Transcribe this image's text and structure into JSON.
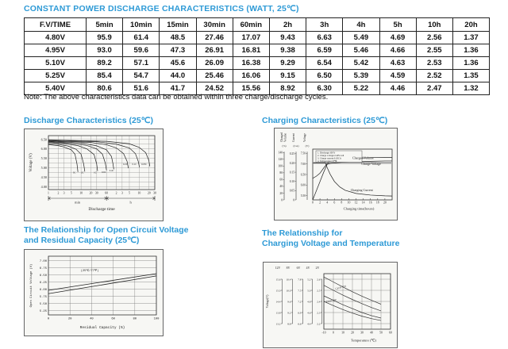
{
  "accent_color": "#2e9ad6",
  "main_title": "CONSTANT POWER DISCHARGE CHARACTERISTICS (WATT, 25℃)",
  "table": {
    "headers": [
      "F.V/TIME",
      "5min",
      "10min",
      "15min",
      "30min",
      "60min",
      "2h",
      "3h",
      "4h",
      "5h",
      "10h",
      "20h"
    ],
    "rows": [
      [
        "4.80V",
        "95.9",
        "61.4",
        "48.5",
        "27.46",
        "17.07",
        "9.43",
        "6.63",
        "5.49",
        "4.69",
        "2.56",
        "1.37"
      ],
      [
        "4.95V",
        "93.0",
        "59.6",
        "47.3",
        "26.91",
        "16.81",
        "9.38",
        "6.59",
        "5.46",
        "4.66",
        "2.55",
        "1.36"
      ],
      [
        "5.10V",
        "89.2",
        "57.1",
        "45.6",
        "26.09",
        "16.38",
        "9.29",
        "6.54",
        "5.42",
        "4.63",
        "2.53",
        "1.36"
      ],
      [
        "5.25V",
        "85.4",
        "54.7",
        "44.0",
        "25.46",
        "16.06",
        "9.15",
        "6.50",
        "5.39",
        "4.59",
        "2.52",
        "1.35"
      ],
      [
        "5.40V",
        "80.6",
        "51.6",
        "41.7",
        "24.52",
        "15.56",
        "8.92",
        "6.30",
        "5.22",
        "4.46",
        "2.47",
        "1.32"
      ]
    ]
  },
  "note": "Note: The above characteristics data can be obtained within three charge/discharge cycles.",
  "sections": {
    "discharge": {
      "title": "Discharge Characteristics (25℃)"
    },
    "charging": {
      "title": "Charging Characteristics (25℃)"
    },
    "ocv": {
      "title_line1": "The Relationship for Open Circuit Voltage",
      "title_line2": "and Residual Capacity (25℃)"
    },
    "temp": {
      "title_line1": "The Relationship for",
      "title_line2": "Charging Voltage and Temperature"
    }
  },
  "chart_data": [
    {
      "type": "line",
      "title": "Discharge Characteristics (25℃)",
      "xlabel": "Discharge time",
      "ylabel": "Voltage (V)",
      "x_scale": "log-minutes",
      "x_group_labels": [
        "min",
        "h"
      ],
      "x_ticks_min": {
        "labels": [
          "1",
          "2",
          "3",
          "5",
          "10",
          "20",
          "30",
          "60"
        ],
        "values": [
          1,
          2,
          3,
          5,
          10,
          20,
          30,
          60
        ]
      },
      "x_ticks_h": {
        "labels": [
          "2",
          "3",
          "5",
          "10",
          "20",
          "30"
        ],
        "values_min": [
          120,
          180,
          300,
          600,
          1200,
          1800
        ]
      },
      "y_ticks": {
        "labels": [
          "6.50",
          "6.00",
          "5.50",
          "5.00",
          "4.50",
          "4.00"
        ],
        "values": [
          6.5,
          6.0,
          5.5,
          5.0,
          4.5,
          4.0
        ]
      },
      "y_range": [
        3.85,
        6.7
      ],
      "series": [
        {
          "name": "3C",
          "points": [
            [
              1,
              6.22
            ],
            [
              2,
              6.17
            ],
            [
              3,
              6.1
            ],
            [
              5,
              5.95
            ],
            [
              6.5,
              5.72
            ],
            [
              7.5,
              5.2
            ],
            [
              8,
              4.78
            ]
          ],
          "label_at": [
            6.2,
            4.7
          ]
        },
        {
          "name": "2C",
          "points": [
            [
              1,
              6.28
            ],
            [
              2,
              6.24
            ],
            [
              4,
              6.15
            ],
            [
              7,
              5.98
            ],
            [
              10,
              5.72
            ],
            [
              12,
              5.2
            ],
            [
              13,
              4.8
            ]
          ],
          "label_at": [
            11,
            4.7
          ]
        },
        {
          "name": "1C",
          "points": [
            [
              1,
              6.35
            ],
            [
              3,
              6.28
            ],
            [
              8,
              6.17
            ],
            [
              15,
              6.0
            ],
            [
              25,
              5.7
            ],
            [
              30,
              5.2
            ],
            [
              32,
              4.83
            ]
          ],
          "label_at": [
            27,
            4.7
          ]
        },
        {
          "name": "0.6C",
          "points": [
            [
              1,
              6.38
            ],
            [
              5,
              6.3
            ],
            [
              15,
              6.18
            ],
            [
              30,
              6.0
            ],
            [
              45,
              5.72
            ],
            [
              55,
              5.25
            ],
            [
              60,
              4.87
            ]
          ],
          "label_at": [
            50,
            4.73
          ]
        },
        {
          "name": "0.4C",
          "points": [
            [
              1,
              6.41
            ],
            [
              10,
              6.31
            ],
            [
              30,
              6.16
            ],
            [
              60,
              5.95
            ],
            [
              85,
              5.6
            ],
            [
              95,
              5.2
            ],
            [
              100,
              4.92
            ]
          ],
          "label_at": [
            86,
            4.82
          ]
        },
        {
          "name": "0.2C",
          "points": [
            [
              1,
              6.43
            ],
            [
              20,
              6.34
            ],
            [
              60,
              6.22
            ],
            [
              120,
              6.05
            ],
            [
              200,
              5.75
            ],
            [
              255,
              5.35
            ],
            [
              280,
              4.98
            ]
          ],
          "label_at": [
            225,
            5.15
          ]
        },
        {
          "name": "0.1C",
          "points": [
            [
              1,
              6.45
            ],
            [
              30,
              6.38
            ],
            [
              120,
              6.25
            ],
            [
              300,
              6.05
            ],
            [
              460,
              5.75
            ],
            [
              560,
              5.35
            ],
            [
              610,
              5.03
            ]
          ],
          "label_at": [
            430,
            5.15
          ]
        },
        {
          "name": "0.05C",
          "points": [
            [
              1,
              6.47
            ],
            [
              60,
              6.4
            ],
            [
              300,
              6.27
            ],
            [
              600,
              6.08
            ],
            [
              950,
              5.8
            ],
            [
              1180,
              5.4
            ],
            [
              1270,
              5.08
            ]
          ],
          "label_at": [
            850,
            5.15
          ]
        }
      ]
    },
    {
      "type": "line",
      "title": "Charging Characteristics (25℃)",
      "xlabel": "Charging time(hours)",
      "x_range": [
        0,
        22
      ],
      "x_ticks": {
        "labels": [
          "0",
          "2",
          "4",
          "6",
          "8",
          "10",
          "12",
          "14",
          "16",
          "18",
          "20"
        ],
        "values": [
          0,
          2,
          4,
          6,
          8,
          10,
          12,
          14,
          16,
          18,
          20
        ]
      },
      "axes": [
        {
          "name_lines": [
            "Charged",
            "Volume"
          ],
          "unit": "(%)",
          "range": [
            0,
            150
          ],
          "tick_vals": [
            140,
            120,
            100,
            80,
            60,
            40,
            20,
            0
          ],
          "tick_labels": [
            "140",
            "120",
            "100",
            "80",
            "60",
            "40",
            "20",
            "0"
          ]
        },
        {
          "name_lines": [
            "Current"
          ],
          "unit": "(CA)",
          "range": [
            0,
            0.275
          ],
          "tick_vals": [
            0.25,
            0.2,
            0.15,
            0.1,
            0.05,
            0
          ],
          "tick_labels": [
            "0.25",
            "0.20",
            "0.15",
            "0.10",
            "0.05",
            "0"
          ]
        },
        {
          "name_lines": [
            "Voltage"
          ],
          "unit": "(V)",
          "range": [
            5.3,
            7.7
          ],
          "tick_vals": [
            7.5,
            7.0,
            6.5,
            6.0,
            5.5
          ],
          "tick_labels": [
            "7.50",
            "7.00",
            "6.50",
            "6.00",
            "5.50"
          ]
        }
      ],
      "notes": [
        "1. Discharge:100%",
        "2. Charge voltage:2.40V/cell",
        "3. Charge current:0.20CA",
        "4. Temperature:25℃"
      ],
      "steady_voltage_line_v": 7.05,
      "series": [
        {
          "name": "Charged Volume",
          "axis": 0,
          "points": [
            [
              0,
              0
            ],
            [
              1,
              27
            ],
            [
              2,
              54
            ],
            [
              3,
              81
            ],
            [
              4,
              105
            ],
            [
              5,
              108
            ],
            [
              8,
              111
            ],
            [
              12,
              113
            ],
            [
              16,
              114
            ],
            [
              20,
              115
            ],
            [
              22,
              115
            ]
          ]
        },
        {
          "name": "Charge Voltage",
          "axis": 2,
          "points": [
            [
              0,
              6.32
            ],
            [
              1,
              6.42
            ],
            [
              2,
              6.56
            ],
            [
              3,
              6.8
            ],
            [
              4,
              7.02
            ],
            [
              5,
              7.12
            ],
            [
              8,
              7.22
            ],
            [
              12,
              7.27
            ],
            [
              16,
              7.3
            ],
            [
              20,
              7.31
            ],
            [
              22,
              7.31
            ]
          ]
        },
        {
          "name": "Charging Current",
          "axis": 1,
          "points": [
            [
              0,
              0.2
            ],
            [
              3.5,
              0.2
            ],
            [
              4,
              0.175
            ],
            [
              4.8,
              0.14
            ],
            [
              6,
              0.1
            ],
            [
              7.5,
              0.07
            ],
            [
              9,
              0.052
            ],
            [
              12,
              0.035
            ],
            [
              16,
              0.026
            ],
            [
              20,
              0.022
            ],
            [
              22,
              0.021
            ]
          ]
        }
      ],
      "labels": [
        {
          "text": "Charged Volume",
          "axis": 0,
          "at": [
            11,
            121
          ]
        },
        {
          "text": "Charge Voltage",
          "axis": 2,
          "at": [
            13.5,
            6.95
          ]
        },
        {
          "text": "Charging Current",
          "axis": 1,
          "at": [
            10.5,
            0.047
          ]
        }
      ]
    },
    {
      "type": "line",
      "title": "The Relationship for Open Circuit Voltage and Residual Capacity (25℃)",
      "xlabel": "Residual Capacity (%)",
      "ylabel": "Open Circuit Voltage (V)",
      "x_ticks": {
        "labels": [
          "0",
          "20",
          "40",
          "60",
          "80",
          "100"
        ],
        "values": [
          0,
          20,
          40,
          60,
          80,
          100
        ]
      },
      "y_ticks": {
        "labels": [
          "7.00",
          "6.75",
          "6.50",
          "6.25",
          "6.00",
          "5.75",
          "5.50",
          "5.25"
        ],
        "values": [
          7.0,
          6.75,
          6.5,
          6.25,
          6.0,
          5.75,
          5.5,
          5.25
        ]
      },
      "y_range": [
        5.1,
        7.15
      ],
      "annotation": "(25℃/77℉)",
      "annotation_at": [
        30,
        6.62
      ],
      "series": [
        {
          "name": "upper",
          "points": [
            [
              0,
              5.96
            ],
            [
              100,
              6.54
            ]
          ]
        },
        {
          "name": "lower",
          "points": [
            [
              0,
              5.84
            ],
            [
              100,
              6.46
            ]
          ]
        }
      ]
    },
    {
      "type": "line",
      "title": "The Relationship for Charging Voltage and Temperature",
      "xlabel": "Temperature (℃)",
      "ylabel": "Voltage(V)",
      "x_range": [
        -10,
        60
      ],
      "x_ticks": {
        "labels": [
          "-10",
          "0",
          "10",
          "20",
          "30",
          "40",
          "50",
          "60"
        ],
        "values": [
          -10,
          0,
          10,
          20,
          30,
          40,
          50,
          60
        ]
      },
      "scales": [
        {
          "name": "12V",
          "tick_labels": [
            "15.6",
            "15.0",
            "14.4",
            "13.8",
            "13.2"
          ]
        },
        {
          "name": "8V",
          "tick_labels": [
            "10.4",
            "10.0",
            "9.6",
            "9.2",
            "8.8"
          ]
        },
        {
          "name": "6V",
          "tick_labels": [
            "7.8",
            "7.5",
            "7.2",
            "6.9",
            "6.6"
          ]
        },
        {
          "name": "4V",
          "tick_labels": [
            "5.2",
            "5.0",
            "4.8",
            "4.6",
            "4.4"
          ]
        },
        {
          "name": "2V",
          "tick_labels": [
            "2.6",
            "2.5",
            "2.4",
            "2.3",
            "2.2"
          ]
        }
      ],
      "y_range_2v": [
        2.15,
        2.65
      ],
      "y_tick_vals_2v": [
        2.6,
        2.5,
        2.4,
        2.3,
        2.2
      ],
      "bands": [
        {
          "name": "Cycle Use",
          "label_at": [
            8,
            2.52
          ],
          "label_rot": -16,
          "upper": [
            [
              -10,
              2.62
            ],
            [
              0,
              2.575
            ],
            [
              10,
              2.53
            ],
            [
              20,
              2.487
            ],
            [
              30,
              2.447
            ],
            [
              40,
              2.41
            ],
            [
              50,
              2.375
            ]
          ],
          "lower": [
            [
              -10,
              2.545
            ],
            [
              0,
              2.5
            ],
            [
              10,
              2.457
            ],
            [
              20,
              2.417
            ],
            [
              30,
              2.38
            ],
            [
              40,
              2.345
            ],
            [
              50,
              2.315
            ]
          ]
        },
        {
          "name": "Float Use",
          "label_at": [
            -2,
            2.4
          ],
          "label_rot": -14,
          "upper": [
            [
              -10,
              2.45
            ],
            [
              0,
              2.41
            ],
            [
              10,
              2.37
            ],
            [
              20,
              2.335
            ],
            [
              30,
              2.3
            ],
            [
              40,
              2.272
            ],
            [
              50,
              2.25
            ]
          ],
          "lower": [
            [
              -10,
              2.4
            ],
            [
              0,
              2.362
            ],
            [
              10,
              2.326
            ],
            [
              20,
              2.295
            ],
            [
              30,
              2.267
            ],
            [
              40,
              2.245
            ],
            [
              50,
              2.228
            ]
          ]
        }
      ]
    }
  ]
}
